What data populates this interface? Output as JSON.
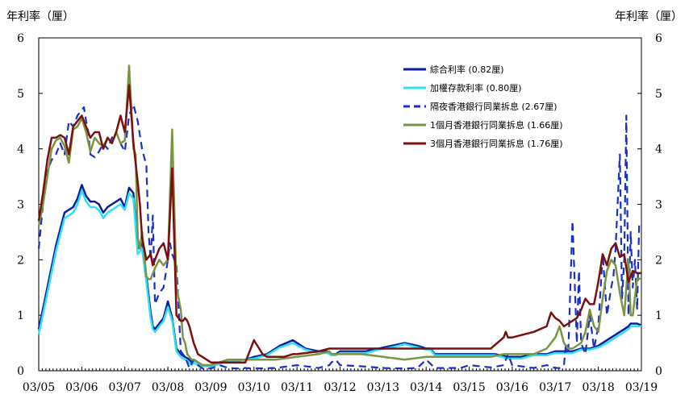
{
  "chart_data": {
    "type": "line",
    "ylabel_left": "年利率（厘）",
    "ylabel_right": "年利率（厘）",
    "ylim": [
      0,
      6
    ],
    "yticks": [
      0,
      1,
      2,
      3,
      4,
      5,
      6
    ],
    "xlim": [
      2005.0,
      2019.0
    ],
    "xtick_labels": [
      "03/05",
      "03/06",
      "03/07",
      "03/08",
      "03/09",
      "03/10",
      "03/11",
      "03/12",
      "03/13",
      "03/14",
      "03/15",
      "03/16",
      "03/17",
      "03/18",
      "03/19"
    ],
    "legend_position": "top-right",
    "grid": false,
    "series": [
      {
        "name": "綜合利率 (0.82厘)",
        "color": "#0b1d9f",
        "style": "solid",
        "x": [
          2005.0,
          2005.2,
          2005.4,
          2005.6,
          2005.8,
          2005.9,
          2006.0,
          2006.1,
          2006.15,
          2006.2,
          2006.3,
          2006.4,
          2006.5,
          2006.6,
          2006.7,
          2006.8,
          2006.9,
          2007.0,
          2007.1,
          2007.2,
          2007.3,
          2007.4,
          2007.5,
          2007.6,
          2007.65,
          2007.7,
          2007.8,
          2007.9,
          2008.0,
          2008.1,
          2008.2,
          2008.3,
          2008.4,
          2008.5,
          2008.55,
          2008.6,
          2008.7,
          2008.8,
          2008.9,
          2009.0,
          2009.2,
          2009.4,
          2009.6,
          2009.8,
          2010.0,
          2010.3,
          2010.6,
          2010.9,
          2011.2,
          2011.5,
          2011.7,
          2011.8,
          2011.9,
          2012.0,
          2012.3,
          2012.6,
          2012.9,
          2013.2,
          2013.5,
          2013.8,
          2014.0,
          2014.1,
          2014.2,
          2014.4,
          2014.6,
          2014.8,
          2015.0,
          2015.3,
          2015.6,
          2015.9,
          2016.2,
          2016.5,
          2016.8,
          2017.0,
          2017.2,
          2017.4,
          2017.6,
          2017.8,
          2018.0,
          2018.2,
          2018.4,
          2018.5,
          2018.6,
          2018.7,
          2018.75,
          2018.8,
          2018.9,
          2019.0
        ],
        "y": [
          0.75,
          1.5,
          2.25,
          2.85,
          2.95,
          3.1,
          3.35,
          3.15,
          3.1,
          3.05,
          3.05,
          3.0,
          2.85,
          2.95,
          3.0,
          3.05,
          3.1,
          2.95,
          3.3,
          3.2,
          2.2,
          2.3,
          1.7,
          1.05,
          0.8,
          0.75,
          0.85,
          0.95,
          1.25,
          0.95,
          0.4,
          0.3,
          0.25,
          0.2,
          0.15,
          0.2,
          0.15,
          0.1,
          0.1,
          0.1,
          0.15,
          0.2,
          0.2,
          0.2,
          0.25,
          0.3,
          0.45,
          0.55,
          0.4,
          0.35,
          0.35,
          0.3,
          0.3,
          0.35,
          0.35,
          0.35,
          0.4,
          0.45,
          0.5,
          0.45,
          0.4,
          0.4,
          0.3,
          0.3,
          0.3,
          0.3,
          0.3,
          0.3,
          0.3,
          0.25,
          0.25,
          0.3,
          0.3,
          0.35,
          0.35,
          0.35,
          0.4,
          0.4,
          0.45,
          0.55,
          0.65,
          0.7,
          0.75,
          0.8,
          0.85,
          0.85,
          0.85,
          0.82
        ]
      },
      {
        "name": "加權存款利率 (0.80厘)",
        "color": "#2ee0f0",
        "style": "solid",
        "x": [
          2005.0,
          2005.2,
          2005.4,
          2005.6,
          2005.8,
          2005.9,
          2006.0,
          2006.1,
          2006.15,
          2006.2,
          2006.3,
          2006.4,
          2006.5,
          2006.6,
          2006.7,
          2006.8,
          2006.9,
          2007.0,
          2007.1,
          2007.2,
          2007.3,
          2007.4,
          2007.5,
          2007.6,
          2007.65,
          2007.7,
          2007.8,
          2007.9,
          2008.0,
          2008.1,
          2008.2,
          2008.3,
          2008.4,
          2008.5,
          2008.55,
          2008.6,
          2008.7,
          2008.8,
          2008.9,
          2009.0,
          2009.2,
          2009.4,
          2009.6,
          2009.8,
          2010.0,
          2010.3,
          2010.6,
          2010.9,
          2011.2,
          2011.5,
          2011.7,
          2011.8,
          2011.9,
          2012.0,
          2012.3,
          2012.6,
          2012.9,
          2013.2,
          2013.5,
          2013.8,
          2014.0,
          2014.1,
          2014.2,
          2014.4,
          2014.6,
          2014.8,
          2015.0,
          2015.3,
          2015.6,
          2015.9,
          2016.2,
          2016.5,
          2016.8,
          2017.0,
          2017.2,
          2017.4,
          2017.6,
          2017.8,
          2018.0,
          2018.2,
          2018.4,
          2018.5,
          2018.6,
          2018.7,
          2018.75,
          2018.8,
          2018.9,
          2019.0
        ],
        "y": [
          0.65,
          1.4,
          2.15,
          2.75,
          2.85,
          3.0,
          3.25,
          3.05,
          3.0,
          2.95,
          2.95,
          2.9,
          2.75,
          2.85,
          2.9,
          2.95,
          3.0,
          2.9,
          3.2,
          3.1,
          2.1,
          2.2,
          1.6,
          0.95,
          0.75,
          0.7,
          0.8,
          0.9,
          1.15,
          0.9,
          0.35,
          0.25,
          0.2,
          0.15,
          0.1,
          0.15,
          0.1,
          0.08,
          0.08,
          0.08,
          0.12,
          0.18,
          0.18,
          0.2,
          0.22,
          0.28,
          0.42,
          0.5,
          0.38,
          0.32,
          0.32,
          0.28,
          0.28,
          0.32,
          0.32,
          0.32,
          0.38,
          0.42,
          0.48,
          0.42,
          0.38,
          0.38,
          0.28,
          0.28,
          0.28,
          0.28,
          0.28,
          0.28,
          0.28,
          0.22,
          0.22,
          0.28,
          0.28,
          0.32,
          0.32,
          0.32,
          0.38,
          0.38,
          0.42,
          0.5,
          0.6,
          0.65,
          0.7,
          0.75,
          0.8,
          0.8,
          0.8,
          0.8
        ]
      },
      {
        "name": "隔夜香港銀行同業拆息 (2.67厘)",
        "color": "#1a2fc4",
        "style": "dashed",
        "x": [
          2005.0,
          2005.1,
          2005.2,
          2005.3,
          2005.4,
          2005.5,
          2005.6,
          2005.7,
          2005.8,
          2005.9,
          2006.0,
          2006.05,
          2006.1,
          2006.15,
          2006.2,
          2006.3,
          2006.4,
          2006.5,
          2006.6,
          2006.7,
          2006.8,
          2006.9,
          2007.0,
          2007.1,
          2007.2,
          2007.3,
          2007.4,
          2007.5,
          2007.55,
          2007.6,
          2007.65,
          2007.7,
          2007.8,
          2007.9,
          2008.0,
          2008.05,
          2008.1,
          2008.2,
          2008.3,
          2008.4,
          2008.5,
          2008.6,
          2008.7,
          2008.8,
          2008.9,
          2009.0,
          2009.2,
          2009.4,
          2009.6,
          2009.8,
          2010.0,
          2010.5,
          2011.0,
          2011.5,
          2011.75,
          2011.8,
          2011.9,
          2012.0,
          2012.5,
          2013.0,
          2013.5,
          2013.8,
          2014.0,
          2014.2,
          2014.5,
          2014.8,
          2015.0,
          2015.5,
          2015.8,
          2015.9,
          2016.0,
          2016.5,
          2016.8,
          2017.0,
          2017.1,
          2017.2,
          2017.25,
          2017.3,
          2017.4,
          2017.5,
          2017.55,
          2017.6,
          2017.7,
          2017.8,
          2017.9,
          2018.0,
          2018.1,
          2018.2,
          2018.3,
          2018.35,
          2018.4,
          2018.5,
          2018.55,
          2018.6,
          2018.65,
          2018.7,
          2018.75,
          2018.8,
          2018.85,
          2018.9,
          2018.95,
          2019.0
        ],
        "y": [
          2.2,
          3.0,
          3.6,
          3.8,
          3.9,
          4.1,
          3.9,
          4.5,
          4.4,
          4.6,
          4.7,
          4.75,
          4.5,
          4.3,
          3.9,
          3.85,
          3.95,
          4.1,
          4.0,
          4.2,
          4.3,
          4.1,
          3.95,
          4.6,
          4.8,
          4.5,
          4.0,
          3.7,
          2.5,
          2.0,
          2.8,
          1.2,
          1.4,
          1.5,
          2.0,
          2.3,
          2.1,
          1.9,
          0.35,
          0.25,
          0.05,
          0.2,
          0.1,
          0.04,
          0.04,
          0.04,
          0.1,
          0.05,
          0.04,
          0.05,
          0.04,
          0.05,
          0.1,
          0.05,
          0.1,
          0.15,
          0.2,
          0.1,
          0.08,
          0.05,
          0.04,
          0.05,
          0.2,
          0.05,
          0.05,
          0.05,
          0.1,
          0.06,
          0.1,
          0.3,
          0.1,
          0.05,
          0.1,
          0.05,
          0.05,
          0.1,
          0.5,
          0.3,
          2.7,
          0.5,
          1.8,
          0.5,
          0.3,
          1.0,
          0.4,
          0.8,
          2.1,
          1.0,
          1.5,
          1.7,
          2.2,
          3.9,
          1.3,
          2.0,
          4.6,
          1.0,
          2.5,
          1.5,
          2.0,
          1.1,
          2.67,
          2.67
        ]
      },
      {
        "name": "1個月香港銀行同業拆息 (1.66厘)",
        "color": "#7a9446",
        "style": "solid",
        "x": [
          2005.0,
          2005.1,
          2005.2,
          2005.3,
          2005.4,
          2005.5,
          2005.6,
          2005.7,
          2005.8,
          2005.9,
          2006.0,
          2006.1,
          2006.2,
          2006.3,
          2006.4,
          2006.5,
          2006.6,
          2006.7,
          2006.8,
          2006.9,
          2007.0,
          2007.1,
          2007.2,
          2007.25,
          2007.3,
          2007.35,
          2007.4,
          2007.5,
          2007.55,
          2007.6,
          2007.7,
          2007.8,
          2007.9,
          2008.0,
          2008.1,
          2008.2,
          2008.3,
          2008.35,
          2008.4,
          2008.45,
          2008.5,
          2008.55,
          2008.6,
          2008.7,
          2008.8,
          2008.9,
          2009.0,
          2009.2,
          2009.4,
          2009.6,
          2009.8,
          2010.0,
          2010.5,
          2011.0,
          2011.5,
          2011.75,
          2011.8,
          2011.9,
          2012.0,
          2012.5,
          2013.0,
          2013.5,
          2014.0,
          2014.5,
          2015.0,
          2015.5,
          2015.8,
          2015.9,
          2016.0,
          2016.5,
          2016.8,
          2017.0,
          2017.1,
          2017.2,
          2017.3,
          2017.4,
          2017.5,
          2017.6,
          2017.7,
          2017.8,
          2017.9,
          2018.0,
          2018.1,
          2018.2,
          2018.3,
          2018.4,
          2018.5,
          2018.6,
          2018.7,
          2018.75,
          2018.8,
          2018.9,
          2019.0
        ],
        "y": [
          2.6,
          3.0,
          3.5,
          4.0,
          4.15,
          4.2,
          4.05,
          3.75,
          4.35,
          4.4,
          4.55,
          4.3,
          3.95,
          4.2,
          4.1,
          4.05,
          4.2,
          4.1,
          4.3,
          4.1,
          4.15,
          5.5,
          4.0,
          3.9,
          2.4,
          2.2,
          2.5,
          1.7,
          1.65,
          1.65,
          1.85,
          2.0,
          1.9,
          2.0,
          4.35,
          1.5,
          1.1,
          0.6,
          0.5,
          0.3,
          0.25,
          0.2,
          0.2,
          0.15,
          0.1,
          0.1,
          0.1,
          0.15,
          0.2,
          0.2,
          0.2,
          0.2,
          0.2,
          0.25,
          0.3,
          0.35,
          0.3,
          0.3,
          0.3,
          0.3,
          0.25,
          0.2,
          0.25,
          0.25,
          0.25,
          0.25,
          0.3,
          0.3,
          0.3,
          0.3,
          0.4,
          0.6,
          0.8,
          0.5,
          0.4,
          0.4,
          0.45,
          0.5,
          0.7,
          1.1,
          0.8,
          0.7,
          1.3,
          1.8,
          2.0,
          1.9,
          1.4,
          1.0,
          2.0,
          1.0,
          1.0,
          1.66,
          1.66
        ]
      },
      {
        "name": "3個月香港銀行同業拆息 (1.76厘)",
        "color": "#7a0f0f",
        "style": "solid",
        "x": [
          2005.0,
          2005.1,
          2005.2,
          2005.3,
          2005.4,
          2005.5,
          2005.6,
          2005.7,
          2005.8,
          2005.9,
          2006.0,
          2006.1,
          2006.2,
          2006.3,
          2006.4,
          2006.5,
          2006.6,
          2006.7,
          2006.8,
          2006.9,
          2007.0,
          2007.1,
          2007.2,
          2007.3,
          2007.35,
          2007.4,
          2007.5,
          2007.6,
          2007.65,
          2007.7,
          2007.8,
          2007.9,
          2008.0,
          2008.1,
          2008.2,
          2008.3,
          2008.35,
          2008.4,
          2008.45,
          2008.5,
          2008.6,
          2008.7,
          2008.8,
          2008.9,
          2009.0,
          2009.2,
          2009.4,
          2009.6,
          2009.8,
          2010.0,
          2010.2,
          2010.3,
          2010.4,
          2010.5,
          2010.7,
          2010.9,
          2011.0,
          2011.5,
          2011.75,
          2011.8,
          2011.9,
          2012.0,
          2012.5,
          2013.0,
          2013.5,
          2014.0,
          2014.5,
          2015.0,
          2015.5,
          2015.8,
          2015.85,
          2015.9,
          2016.0,
          2016.5,
          2016.8,
          2016.9,
          2017.0,
          2017.1,
          2017.2,
          2017.3,
          2017.4,
          2017.5,
          2017.6,
          2017.7,
          2017.8,
          2017.9,
          2018.0,
          2018.1,
          2018.2,
          2018.3,
          2018.4,
          2018.5,
          2018.6,
          2018.7,
          2018.8,
          2018.9,
          2019.0
        ],
        "y": [
          2.7,
          3.2,
          3.8,
          4.2,
          4.2,
          4.25,
          4.2,
          3.9,
          4.4,
          4.5,
          4.6,
          4.4,
          4.2,
          4.3,
          4.3,
          4.0,
          4.2,
          4.1,
          4.3,
          4.6,
          4.3,
          5.15,
          4.1,
          3.4,
          3.0,
          2.4,
          2.0,
          2.1,
          1.9,
          2.0,
          2.2,
          2.3,
          2.0,
          3.65,
          1.0,
          0.9,
          0.9,
          0.95,
          0.9,
          0.8,
          0.5,
          0.3,
          0.25,
          0.2,
          0.15,
          0.15,
          0.15,
          0.15,
          0.15,
          0.55,
          0.3,
          0.25,
          0.25,
          0.25,
          0.25,
          0.3,
          0.3,
          0.35,
          0.4,
          0.4,
          0.4,
          0.4,
          0.4,
          0.4,
          0.4,
          0.4,
          0.4,
          0.4,
          0.4,
          0.6,
          0.7,
          0.6,
          0.6,
          0.7,
          0.8,
          1.05,
          0.95,
          0.9,
          0.8,
          0.85,
          0.9,
          0.95,
          1.1,
          1.3,
          1.2,
          1.2,
          1.6,
          2.1,
          1.9,
          2.2,
          2.3,
          2.05,
          2.1,
          1.6,
          1.8,
          1.76,
          1.76
        ]
      }
    ]
  }
}
